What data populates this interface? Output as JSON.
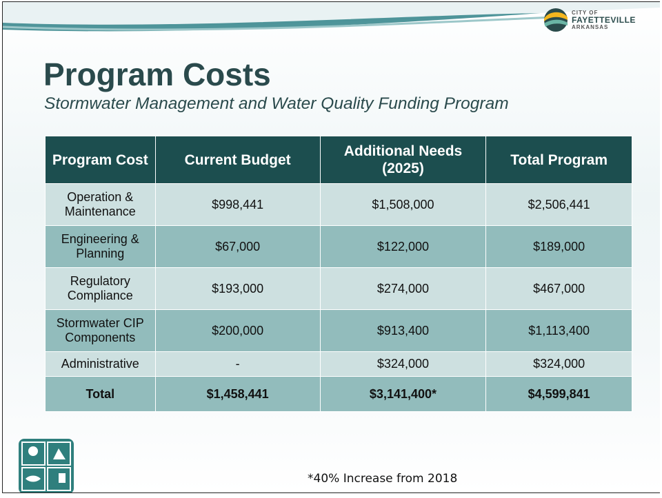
{
  "header": {
    "logo": {
      "line1": "CITY OF",
      "line2": "FAYETTEVILLE",
      "line3": "ARKANSAS"
    },
    "title": "Program Costs",
    "subtitle": "Stormwater Management and Water Quality Funding Program"
  },
  "table": {
    "columns": [
      "Program Cost",
      "Current Budget",
      "Additional Needs (2025)",
      "Total Program"
    ],
    "rows": [
      [
        "Operation & Maintenance",
        "$998,441",
        "$1,508,000",
        "$2,506,441"
      ],
      [
        "Engineering & Planning",
        "$67,000",
        "$122,000",
        "$189,000"
      ],
      [
        "Regulatory Compliance",
        "$193,000",
        "$274,000",
        "$467,000"
      ],
      [
        "Stormwater CIP Components",
        "$200,000",
        "$913,400",
        "$1,113,400"
      ],
      [
        "Administrative",
        "-",
        "$324,000",
        "$324,000"
      ]
    ],
    "total": [
      "Total",
      "$1,458,441",
      "$3,141,400*",
      "$4,599,841"
    ]
  },
  "footnote": "*40% Increase from 2018"
}
